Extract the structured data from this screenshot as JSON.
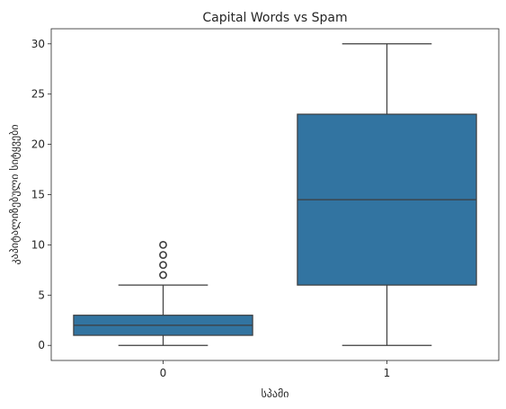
{
  "chart_data": {
    "type": "box",
    "title": "Capital Words vs Spam",
    "xlabel": "სპამი",
    "ylabel": "კაპიტალიზებული სიტყვები",
    "categories": [
      "0",
      "1"
    ],
    "yticks": [
      0,
      5,
      10,
      15,
      20,
      25,
      30
    ],
    "ylim": [
      -1.5,
      31.5
    ],
    "grid": false,
    "box_color": "#3274a1",
    "line_color": "#3d3d3d",
    "boxes": [
      {
        "category": "0",
        "whisker_low": 0,
        "q1": 1,
        "median": 2,
        "q3": 3,
        "whisker_high": 6,
        "outliers": [
          7,
          8,
          9,
          10
        ]
      },
      {
        "category": "1",
        "whisker_low": 0,
        "q1": 6,
        "median": 14.5,
        "q3": 23,
        "whisker_high": 30,
        "outliers": []
      }
    ]
  }
}
